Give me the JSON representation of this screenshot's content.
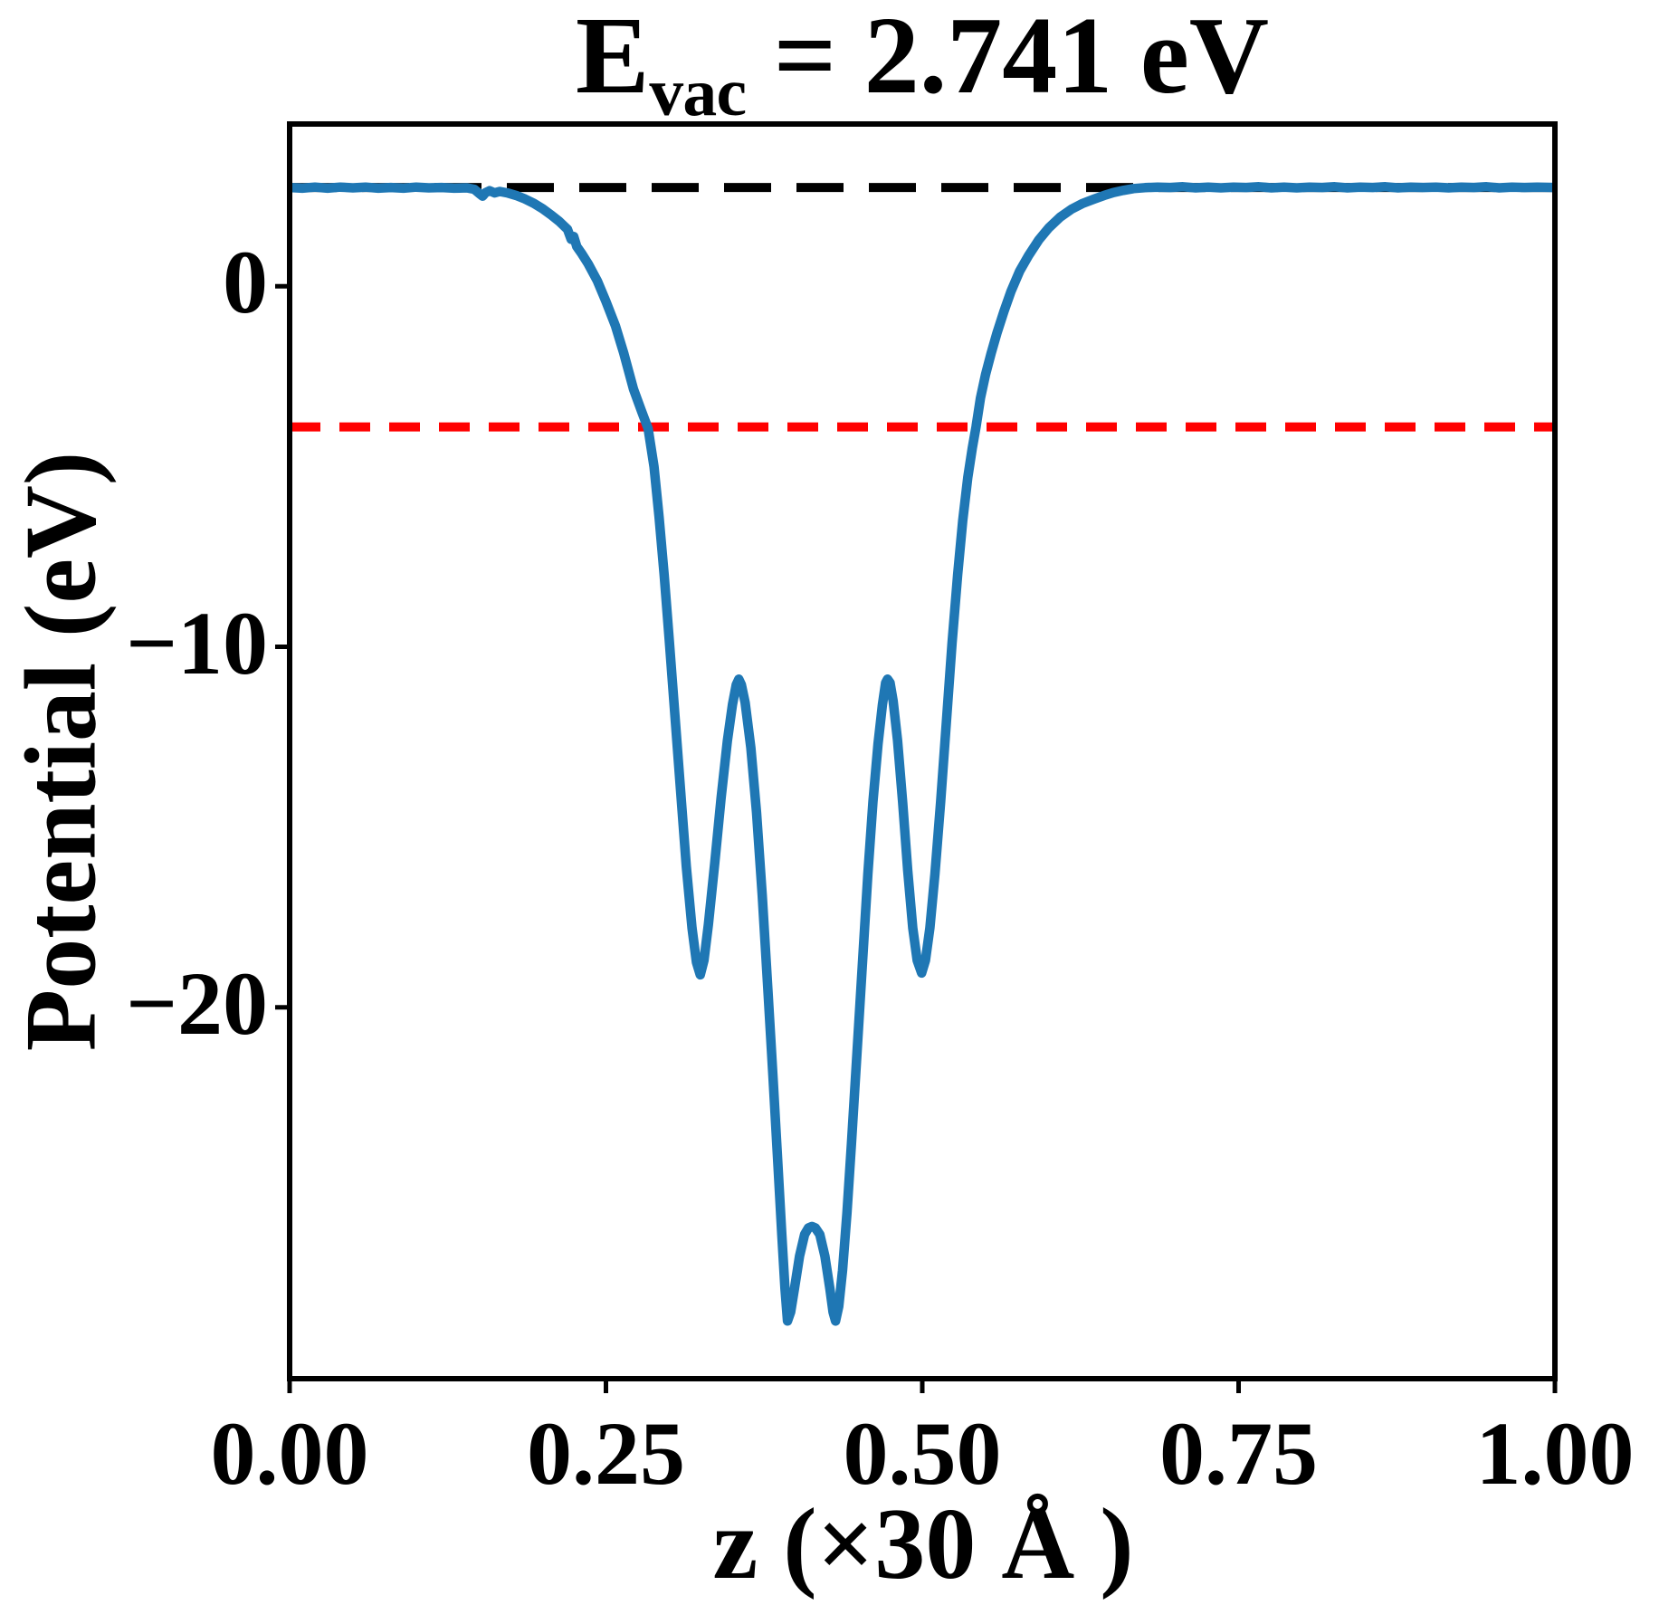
{
  "title": {
    "base": "E",
    "subscript": "vac",
    "rest": " = 2.741 eV"
  },
  "colors": {
    "curve": "#1f77b4",
    "vacuum_line": "#000000",
    "fermi_line": "#ff0000",
    "background": "#ffffff",
    "text": "#000000"
  },
  "chart_data": {
    "type": "line",
    "title": "E_vac = 2.741 eV",
    "xlabel": "z (×30 Å )",
    "ylabel": "Potential (eV)",
    "xlim": [
      0,
      1
    ],
    "ylim": [
      -30.3,
      4.5
    ],
    "grid": false,
    "legend": "none",
    "xticks": {
      "values": [
        0,
        0.25,
        0.5,
        0.75,
        1.0
      ],
      "labels": [
        "0.00",
        "0.25",
        "0.50",
        "0.75",
        "1.00"
      ]
    },
    "yticks": {
      "values": [
        0,
        -10,
        -20
      ],
      "labels": [
        "0",
        "−10",
        "−20"
      ]
    },
    "annotations": {
      "vacuum_energy_eV": 2.741
    },
    "series": [
      {
        "name": "vacuum-level",
        "style": "dashed",
        "color": "#000000",
        "dash": [
          52,
          28
        ],
        "width": 10,
        "y": 2.741
      },
      {
        "name": "fermi-level",
        "style": "dashed",
        "color": "#ff0000",
        "dash": [
          34,
          21
        ],
        "width": 10,
        "y": -3.9
      },
      {
        "name": "planar-averaged-potential",
        "style": "solid",
        "color": "#1f77b4",
        "width": 10.5,
        "points": [
          [
            0.0,
            2.74
          ],
          [
            0.01,
            2.72
          ],
          [
            0.02,
            2.75
          ],
          [
            0.03,
            2.72
          ],
          [
            0.04,
            2.75
          ],
          [
            0.05,
            2.73
          ],
          [
            0.06,
            2.75
          ],
          [
            0.07,
            2.72
          ],
          [
            0.08,
            2.74
          ],
          [
            0.09,
            2.72
          ],
          [
            0.1,
            2.75
          ],
          [
            0.11,
            2.73
          ],
          [
            0.12,
            2.74
          ],
          [
            0.13,
            2.72
          ],
          [
            0.14,
            2.73
          ],
          [
            0.146,
            2.69
          ],
          [
            0.15,
            2.57
          ],
          [
            0.1525,
            2.5
          ],
          [
            0.155,
            2.6
          ],
          [
            0.158,
            2.65
          ],
          [
            0.162,
            2.59
          ],
          [
            0.166,
            2.63
          ],
          [
            0.172,
            2.59
          ],
          [
            0.179,
            2.52
          ],
          [
            0.186,
            2.42
          ],
          [
            0.193,
            2.3
          ],
          [
            0.2,
            2.15
          ],
          [
            0.207,
            1.97
          ],
          [
            0.213,
            1.8
          ],
          [
            0.2196,
            1.58
          ],
          [
            0.2225,
            1.3
          ],
          [
            0.2245,
            1.38
          ],
          [
            0.227,
            1.1
          ],
          [
            0.231,
            0.9
          ],
          [
            0.236,
            0.62
          ],
          [
            0.2432,
            0.15
          ],
          [
            0.25,
            -0.42
          ],
          [
            0.2575,
            -1.1
          ],
          [
            0.264,
            -1.85
          ],
          [
            0.2718,
            -2.86
          ],
          [
            0.278,
            -3.45
          ],
          [
            0.2833,
            -3.95
          ],
          [
            0.288,
            -5.0
          ],
          [
            0.292,
            -6.4
          ],
          [
            0.296,
            -8.0
          ],
          [
            0.3,
            -9.8
          ],
          [
            0.3045,
            -11.9
          ],
          [
            0.309,
            -14.0
          ],
          [
            0.3135,
            -16.1
          ],
          [
            0.318,
            -17.8
          ],
          [
            0.3215,
            -18.75
          ],
          [
            0.3245,
            -19.1
          ],
          [
            0.3275,
            -18.7
          ],
          [
            0.331,
            -17.7
          ],
          [
            0.336,
            -16.0
          ],
          [
            0.341,
            -14.2
          ],
          [
            0.346,
            -12.6
          ],
          [
            0.35,
            -11.6
          ],
          [
            0.353,
            -11.05
          ],
          [
            0.355,
            -10.9
          ],
          [
            0.357,
            -11.05
          ],
          [
            0.36,
            -11.55
          ],
          [
            0.3645,
            -12.8
          ],
          [
            0.369,
            -14.6
          ],
          [
            0.3735,
            -16.9
          ],
          [
            0.378,
            -19.5
          ],
          [
            0.382,
            -21.9
          ],
          [
            0.386,
            -24.4
          ],
          [
            0.389,
            -26.3
          ],
          [
            0.3915,
            -27.8
          ],
          [
            0.3935,
            -28.7
          ],
          [
            0.396,
            -28.45
          ],
          [
            0.399,
            -27.8
          ],
          [
            0.403,
            -26.9
          ],
          [
            0.407,
            -26.3
          ],
          [
            0.41,
            -26.12
          ],
          [
            0.4128,
            -26.08
          ],
          [
            0.4155,
            -26.12
          ],
          [
            0.419,
            -26.3
          ],
          [
            0.423,
            -26.9
          ],
          [
            0.427,
            -27.8
          ],
          [
            0.4295,
            -28.45
          ],
          [
            0.4315,
            -28.7
          ],
          [
            0.434,
            -28.3
          ],
          [
            0.437,
            -27.3
          ],
          [
            0.4405,
            -25.7
          ],
          [
            0.444,
            -23.8
          ],
          [
            0.448,
            -21.5
          ],
          [
            0.4525,
            -18.9
          ],
          [
            0.457,
            -16.3
          ],
          [
            0.461,
            -14.3
          ],
          [
            0.465,
            -12.7
          ],
          [
            0.4685,
            -11.6
          ],
          [
            0.471,
            -11.0
          ],
          [
            0.4725,
            -10.9
          ],
          [
            0.4745,
            -11.0
          ],
          [
            0.477,
            -11.5
          ],
          [
            0.4805,
            -12.6
          ],
          [
            0.4845,
            -14.3
          ],
          [
            0.4885,
            -16.2
          ],
          [
            0.4925,
            -17.8
          ],
          [
            0.496,
            -18.7
          ],
          [
            0.4995,
            -19.05
          ],
          [
            0.5025,
            -18.7
          ],
          [
            0.506,
            -17.8
          ],
          [
            0.51,
            -16.3
          ],
          [
            0.5145,
            -14.3
          ],
          [
            0.519,
            -12.1
          ],
          [
            0.5235,
            -9.9
          ],
          [
            0.528,
            -8.0
          ],
          [
            0.532,
            -6.5
          ],
          [
            0.536,
            -5.3
          ],
          [
            0.5395,
            -4.5
          ],
          [
            0.5425,
            -3.9
          ],
          [
            0.546,
            -3.1
          ],
          [
            0.55,
            -2.45
          ],
          [
            0.5545,
            -1.85
          ],
          [
            0.559,
            -1.3
          ],
          [
            0.5645,
            -0.7
          ],
          [
            0.57,
            -0.15
          ],
          [
            0.577,
            0.42
          ],
          [
            0.584,
            0.85
          ],
          [
            0.592,
            1.28
          ],
          [
            0.6,
            1.62
          ],
          [
            0.609,
            1.92
          ],
          [
            0.618,
            2.14
          ],
          [
            0.627,
            2.3
          ],
          [
            0.636,
            2.42
          ],
          [
            0.6438,
            2.52
          ],
          [
            0.651,
            2.6
          ],
          [
            0.659,
            2.66
          ],
          [
            0.667,
            2.71
          ],
          [
            0.676,
            2.735
          ],
          [
            0.686,
            2.75
          ],
          [
            0.696,
            2.74
          ],
          [
            0.706,
            2.76
          ],
          [
            0.716,
            2.73
          ],
          [
            0.726,
            2.75
          ],
          [
            0.736,
            2.73
          ],
          [
            0.746,
            2.75
          ],
          [
            0.756,
            2.74
          ],
          [
            0.766,
            2.76
          ],
          [
            0.776,
            2.73
          ],
          [
            0.786,
            2.75
          ],
          [
            0.796,
            2.73
          ],
          [
            0.806,
            2.75
          ],
          [
            0.816,
            2.74
          ],
          [
            0.826,
            2.76
          ],
          [
            0.836,
            2.73
          ],
          [
            0.846,
            2.75
          ],
          [
            0.856,
            2.74
          ],
          [
            0.866,
            2.76
          ],
          [
            0.876,
            2.73
          ],
          [
            0.886,
            2.75
          ],
          [
            0.896,
            2.74
          ],
          [
            0.906,
            2.75
          ],
          [
            0.916,
            2.73
          ],
          [
            0.926,
            2.75
          ],
          [
            0.936,
            2.74
          ],
          [
            0.946,
            2.76
          ],
          [
            0.956,
            2.73
          ],
          [
            0.966,
            2.75
          ],
          [
            0.976,
            2.74
          ],
          [
            0.986,
            2.75
          ],
          [
            1.0,
            2.74
          ]
        ]
      }
    ]
  }
}
